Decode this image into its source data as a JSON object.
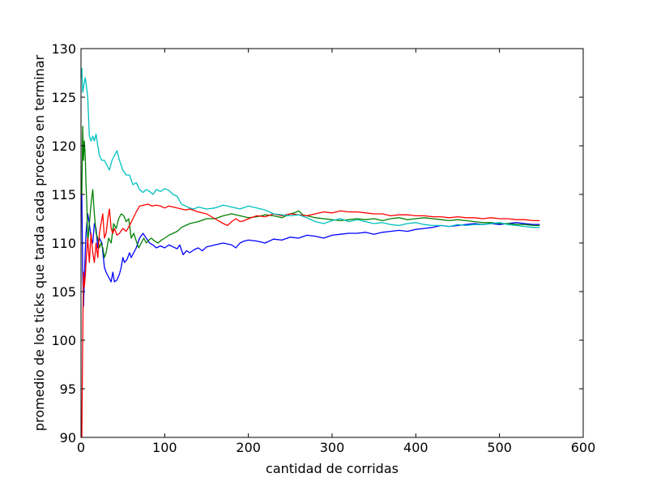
{
  "chart_data": {
    "type": "line",
    "title": "",
    "xlabel": "cantidad de corridas",
    "ylabel": "promedio de los ticks que tarda cada proceso en terminar",
    "xlim": [
      0,
      600
    ],
    "ylim": [
      90,
      130
    ],
    "xticks": [
      0,
      100,
      200,
      300,
      400,
      500,
      600
    ],
    "yticks": [
      90,
      95,
      100,
      105,
      110,
      115,
      120,
      125,
      130
    ],
    "grid": false,
    "legend": "none",
    "series": [
      {
        "color": "#0000ff",
        "x": [
          1,
          2,
          3,
          4,
          5,
          6,
          8,
          10,
          12,
          14,
          16,
          18,
          20,
          22,
          25,
          28,
          30,
          33,
          36,
          38,
          40,
          43,
          46,
          48,
          50,
          52,
          55,
          58,
          60,
          63,
          66,
          70,
          74,
          78,
          82,
          86,
          90,
          95,
          100,
          105,
          110,
          115,
          118,
          122,
          126,
          130,
          135,
          140,
          145,
          150,
          155,
          160,
          170,
          180,
          185,
          190,
          195,
          200,
          210,
          220,
          230,
          240,
          250,
          260,
          270,
          280,
          290,
          300,
          310,
          320,
          330,
          340,
          350,
          360,
          370,
          380,
          390,
          400,
          410,
          420,
          430,
          440,
          450,
          460,
          470,
          480,
          490,
          500,
          510,
          520,
          530,
          540,
          548
        ],
        "y": [
          115,
          107,
          103.5,
          106,
          109,
          111,
          113,
          112,
          110.5,
          110,
          112,
          111.5,
          109.5,
          110.5,
          110,
          107.5,
          107,
          106.5,
          106,
          107,
          106,
          106.2,
          106.8,
          107.5,
          108.5,
          108,
          108.3,
          109,
          108.5,
          109,
          109.5,
          110.5,
          111,
          110.5,
          110,
          109.8,
          109.5,
          109.7,
          109.5,
          109.8,
          109.6,
          109.4,
          109.8,
          108.8,
          109.2,
          109,
          109.3,
          109.5,
          109.2,
          109.6,
          109.7,
          109.8,
          110,
          109.8,
          109.5,
          110,
          110.2,
          110.3,
          110.2,
          110,
          110.4,
          110.3,
          110.6,
          110.5,
          110.8,
          110.7,
          110.5,
          110.8,
          110.9,
          111,
          111,
          111.1,
          110.9,
          111.1,
          111.2,
          111.3,
          111.2,
          111.4,
          111.5,
          111.6,
          111.8,
          111.7,
          111.8,
          111.9,
          112,
          111.9,
          112,
          111.9,
          112,
          112.1,
          112,
          111.9,
          111.9
        ]
      },
      {
        "color": "#008000",
        "x": [
          1,
          2,
          3,
          4,
          5,
          6,
          7,
          8,
          10,
          12,
          14,
          16,
          18,
          20,
          22,
          24,
          26,
          28,
          30,
          33,
          36,
          39,
          42,
          45,
          48,
          51,
          54,
          57,
          60,
          63,
          66,
          69,
          72,
          75,
          78,
          81,
          84,
          88,
          92,
          96,
          100,
          105,
          110,
          115,
          120,
          125,
          130,
          140,
          150,
          160,
          170,
          180,
          190,
          200,
          210,
          220,
          230,
          240,
          250,
          255,
          260,
          265,
          270,
          280,
          290,
          300,
          310,
          320,
          330,
          340,
          350,
          360,
          370,
          380,
          390,
          400,
          410,
          420,
          430,
          440,
          450,
          460,
          470,
          480,
          490,
          500,
          510,
          520,
          530,
          540,
          548
        ],
        "y": [
          115,
          122,
          118.5,
          120.5,
          119,
          116,
          114,
          110,
          112,
          114,
          115.5,
          113,
          111,
          110.5,
          109.5,
          110,
          109.5,
          108.5,
          109,
          110.5,
          110,
          112,
          111.5,
          112.5,
          113,
          112.8,
          112.2,
          112.5,
          110.5,
          111,
          110.2,
          109.5,
          110,
          110.5,
          110,
          110.3,
          110.5,
          110.2,
          110,
          110.3,
          110.5,
          110.8,
          111,
          111.2,
          111.6,
          111.8,
          112,
          112.2,
          112.5,
          112.5,
          112.8,
          113,
          112.8,
          112.6,
          112.7,
          112.9,
          112.8,
          112.6,
          113,
          113.1,
          113.3,
          112.9,
          112.8,
          112.6,
          112.5,
          112.4,
          112.3,
          112.4,
          112.5,
          112.4,
          112.5,
          112.3,
          112.5,
          112.6,
          112.4,
          112.5,
          112.6,
          112.5,
          112.4,
          112.3,
          112.4,
          112.3,
          112.2,
          112.1,
          112.1,
          112,
          112,
          111.9,
          111.9,
          111.8,
          111.8
        ]
      },
      {
        "color": "#ff0000",
        "x": [
          1,
          2,
          3,
          4,
          5,
          6,
          8,
          10,
          12,
          14,
          16,
          18,
          20,
          22,
          24,
          26,
          28,
          30,
          32,
          34,
          36,
          38,
          40,
          43,
          46,
          50,
          54,
          58,
          62,
          66,
          70,
          75,
          80,
          85,
          90,
          95,
          100,
          105,
          110,
          115,
          120,
          125,
          130,
          140,
          150,
          160,
          170,
          175,
          180,
          185,
          190,
          195,
          200,
          210,
          220,
          230,
          240,
          250,
          260,
          270,
          280,
          290,
          300,
          310,
          320,
          330,
          340,
          350,
          360,
          370,
          380,
          390,
          400,
          410,
          420,
          430,
          440,
          450,
          460,
          470,
          480,
          490,
          500,
          510,
          520,
          530,
          540,
          548
        ],
        "y": [
          90,
          100,
          107,
          105.5,
          106.5,
          108,
          110.5,
          108,
          111,
          109,
          108,
          110,
          108.5,
          111,
          112,
          113,
          110.5,
          111,
          112.5,
          113.5,
          111.5,
          111,
          111.5,
          110.8,
          111,
          111.5,
          111.2,
          111.8,
          112.5,
          113.2,
          113.8,
          113.9,
          114,
          113.8,
          113.9,
          113.8,
          113.6,
          113.8,
          113.7,
          113.6,
          113.5,
          113.4,
          113.5,
          113.2,
          113,
          112.5,
          112,
          111.8,
          112.2,
          112.5,
          112.2,
          112.3,
          112.5,
          112.8,
          112.7,
          113,
          112.8,
          113,
          112.9,
          112.8,
          113,
          113.2,
          113.1,
          113.3,
          113.2,
          113.2,
          113.1,
          113,
          113,
          112.8,
          112.9,
          112.9,
          112.8,
          112.8,
          112.7,
          112.7,
          112.6,
          112.7,
          112.6,
          112.6,
          112.5,
          112.6,
          112.5,
          112.5,
          112.4,
          112.4,
          112.3,
          112.3
        ]
      },
      {
        "color": "#00bfbf",
        "x": [
          1,
          2,
          3,
          4,
          5,
          6,
          8,
          10,
          12,
          14,
          16,
          18,
          20,
          22,
          25,
          28,
          31,
          34,
          37,
          40,
          43,
          46,
          50,
          54,
          58,
          62,
          66,
          70,
          74,
          78,
          82,
          86,
          90,
          95,
          100,
          105,
          110,
          115,
          120,
          125,
          130,
          135,
          140,
          150,
          160,
          170,
          180,
          190,
          200,
          210,
          220,
          230,
          240,
          250,
          260,
          270,
          280,
          290,
          300,
          310,
          320,
          330,
          340,
          350,
          360,
          370,
          380,
          390,
          400,
          410,
          420,
          430,
          440,
          450,
          460,
          470,
          480,
          490,
          500,
          510,
          520,
          530,
          540,
          548
        ],
        "y": [
          128,
          125.5,
          126,
          126.5,
          127,
          126.5,
          125,
          121,
          120.5,
          121,
          120.5,
          121.2,
          120,
          119,
          118.5,
          118.5,
          118,
          117.5,
          118.5,
          119,
          119.5,
          118.5,
          117.5,
          117,
          117,
          116,
          116.2,
          115.5,
          115.2,
          115.5,
          115.3,
          115,
          115.5,
          115.3,
          115.6,
          115.4,
          115,
          114.8,
          114,
          113.8,
          113.6,
          113.5,
          113.7,
          113.5,
          113.6,
          113.9,
          113.7,
          113.5,
          113.8,
          113.6,
          113.4,
          113,
          112.9,
          112.8,
          112.9,
          112.6,
          112.2,
          112,
          112.3,
          112.5,
          112.2,
          112.4,
          112.2,
          112,
          112.1,
          111.9,
          111.8,
          112,
          112.1,
          111.9,
          111.8,
          111.8,
          111.7,
          111.9,
          111.8,
          111.9,
          111.9,
          112,
          112.1,
          111.9,
          111.8,
          111.7,
          111.6,
          111.6
        ]
      }
    ]
  }
}
